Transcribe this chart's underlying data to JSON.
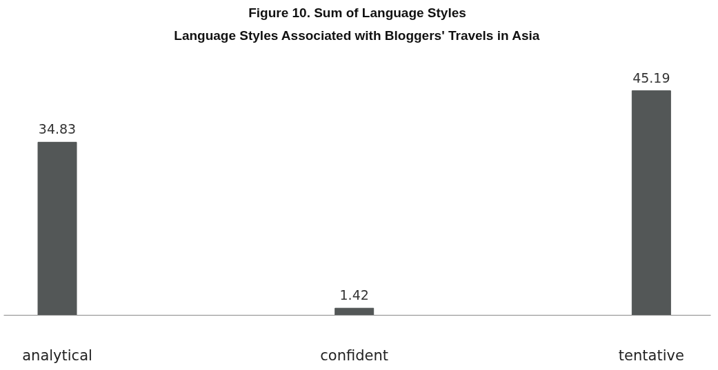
{
  "chart_data": {
    "type": "bar",
    "title": "Figure 10. Sum of Language Styles",
    "subtitle": "Language Styles Associated with Bloggers' Travels in Asia",
    "categories": [
      "analytical",
      "confident",
      "tentative"
    ],
    "values": [
      34.83,
      1.42,
      45.19
    ],
    "color": "#535757",
    "data_labels": true,
    "grid": false
  }
}
